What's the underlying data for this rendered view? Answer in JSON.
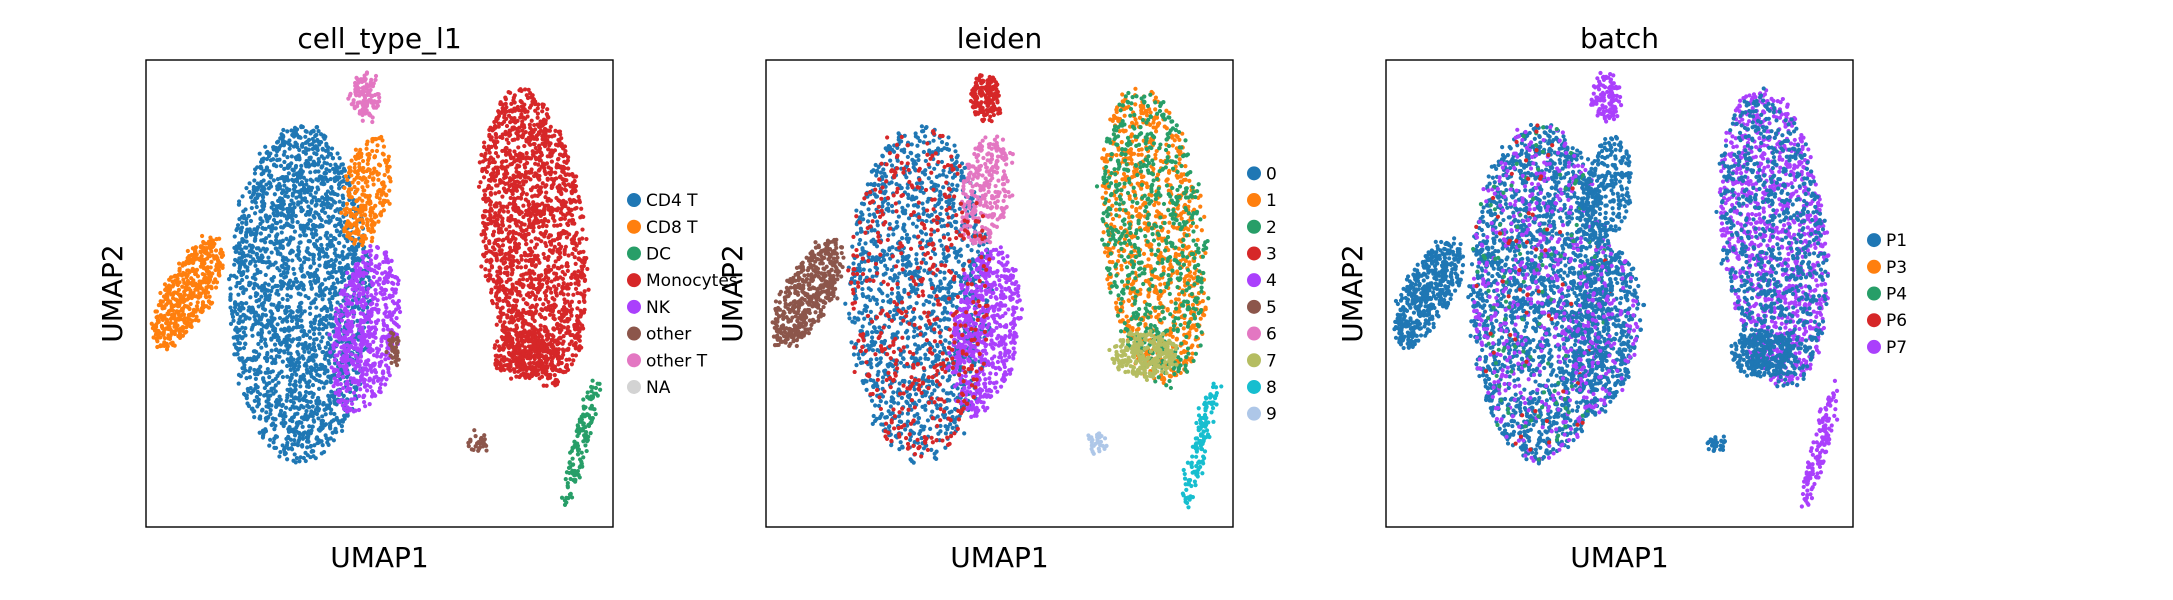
{
  "chart_data": [
    {
      "type": "scatter",
      "title": "cell_type_l1",
      "xlabel": "UMAP1",
      "ylabel": "UMAP2",
      "grid": false,
      "legend": "outside-right",
      "categories": [
        {
          "name": "CD4 T",
          "color": "#1f77b4"
        },
        {
          "name": "CD8 T",
          "color": "#ff7f0e"
        },
        {
          "name": "DC",
          "color": "#279e68"
        },
        {
          "name": "Monocytes",
          "color": "#d62728"
        },
        {
          "name": "NK",
          "color": "#aa40fc"
        },
        {
          "name": "other",
          "color": "#8c564b"
        },
        {
          "name": "other T",
          "color": "#e377c2"
        },
        {
          "name": "NA",
          "color": "#d3d3d3"
        }
      ],
      "clusters": [
        {
          "category": "CD8 T",
          "x": 1.0,
          "y": 4.9
        },
        {
          "category": "CD4 T",
          "x": 2.8,
          "y": 5.3
        },
        {
          "category": "CD8 T",
          "x": 4.3,
          "y": 6.8
        },
        {
          "category": "other T",
          "x": 4.6,
          "y": 9.2
        },
        {
          "category": "NK",
          "x": 4.8,
          "y": 4.9
        },
        {
          "category": "other",
          "x": 5.3,
          "y": 3.8
        },
        {
          "category": "Monocytes",
          "x": 8.4,
          "y": 6.4
        },
        {
          "category": "DC",
          "x": 9.2,
          "y": 1.8
        },
        {
          "category": "other",
          "x": 7.1,
          "y": 1.8
        }
      ]
    },
    {
      "type": "scatter",
      "title": "leiden",
      "xlabel": "UMAP1",
      "ylabel": "UMAP2",
      "grid": false,
      "legend": "outside-right",
      "categories": [
        {
          "name": "0",
          "color": "#1f77b4"
        },
        {
          "name": "1",
          "color": "#ff7f0e"
        },
        {
          "name": "2",
          "color": "#279e68"
        },
        {
          "name": "3",
          "color": "#d62728"
        },
        {
          "name": "4",
          "color": "#aa40fc"
        },
        {
          "name": "5",
          "color": "#8c564b"
        },
        {
          "name": "6",
          "color": "#e377c2"
        },
        {
          "name": "7",
          "color": "#b5bd61"
        },
        {
          "name": "8",
          "color": "#17becf"
        },
        {
          "name": "9",
          "color": "#aec7e8"
        }
      ],
      "clusters": [
        {
          "category": "5",
          "x": 1.0,
          "y": 4.9
        },
        {
          "category": "0",
          "x": 2.8,
          "y": 3.6
        },
        {
          "category": "3",
          "x": 3.3,
          "y": 8.4
        },
        {
          "category": "6",
          "x": 4.1,
          "y": 7.1
        },
        {
          "category": "4",
          "x": 4.7,
          "y": 4.5
        },
        {
          "category": "1",
          "x": 8.4,
          "y": 8.6
        },
        {
          "category": "2",
          "x": 9.1,
          "y": 5.6
        },
        {
          "category": "7",
          "x": 8.8,
          "y": 3.7
        },
        {
          "category": "8",
          "x": 9.2,
          "y": 1.8
        },
        {
          "category": "9",
          "x": 7.1,
          "y": 1.8
        }
      ]
    },
    {
      "type": "scatter",
      "title": "batch",
      "xlabel": "UMAP1",
      "ylabel": "UMAP2",
      "grid": false,
      "legend": "outside-right",
      "categories": [
        {
          "name": "P1",
          "color": "#1f77b4"
        },
        {
          "name": "P3",
          "color": "#ff7f0e"
        },
        {
          "name": "P4",
          "color": "#279e68"
        },
        {
          "name": "P6",
          "color": "#d62728"
        },
        {
          "name": "P7",
          "color": "#aa40fc"
        }
      ],
      "clusters": [
        {
          "category": "P1",
          "x": 1.0,
          "y": 4.9
        },
        {
          "category": "P1",
          "x": 3.0,
          "y": 5.6
        },
        {
          "category": "P7",
          "x": 8.4,
          "y": 6.4
        },
        {
          "category": "P1",
          "x": 7.1,
          "y": 1.8
        }
      ]
    }
  ]
}
